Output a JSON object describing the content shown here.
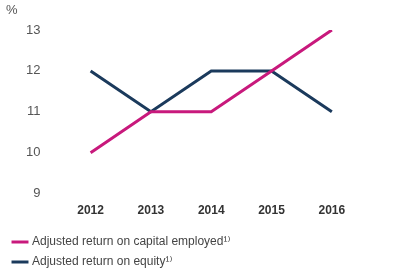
{
  "chart_data": {
    "type": "line",
    "y_label": "%",
    "categories": [
      "2012",
      "2013",
      "2014",
      "2015",
      "2016"
    ],
    "series": [
      {
        "name": "Adjusted return on capital employed¹⁾",
        "color": "#c8197c",
        "values": [
          10,
          11,
          11,
          12,
          13
        ]
      },
      {
        "name": "Adjusted return on equity¹⁾",
        "color": "#1b3a5c",
        "values": [
          12,
          11,
          12,
          12,
          11
        ]
      }
    ],
    "ylim": [
      9,
      13
    ],
    "yticks": [
      9,
      10,
      11,
      12,
      13
    ],
    "grid": false,
    "legend": "bottom"
  }
}
